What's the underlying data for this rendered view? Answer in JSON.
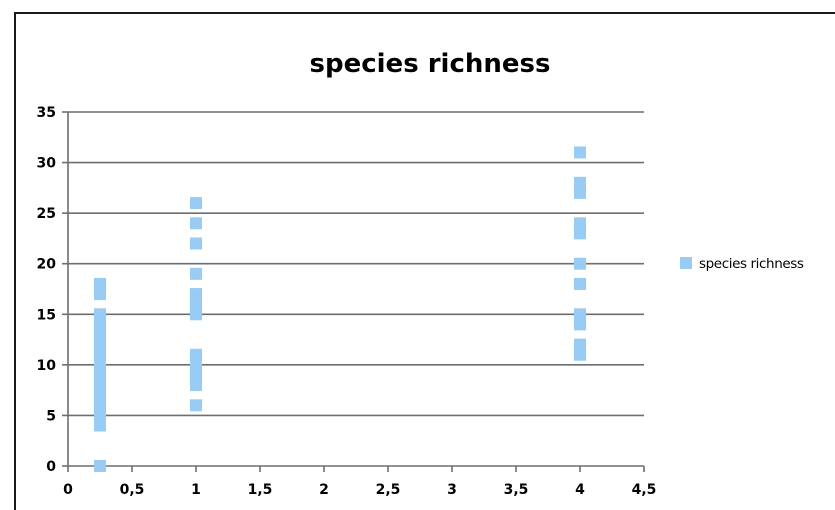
{
  "chart_data": {
    "type": "scatter",
    "title": "species richness",
    "xlabel": "",
    "ylabel": "",
    "xlim": [
      0,
      4.5
    ],
    "ylim": [
      0,
      35
    ],
    "x_tick_labels": [
      "0",
      "0,5",
      "1",
      "1,5",
      "2",
      "2,5",
      "3",
      "3,5",
      "4",
      "4,5"
    ],
    "y_tick_labels": [
      "0",
      "5",
      "10",
      "15",
      "20",
      "25",
      "30",
      "35"
    ],
    "grid": "horizontal",
    "legend_position": "right",
    "marker_color": "#99ccf5",
    "series": [
      {
        "name": "species richness",
        "points": [
          {
            "x": 0.25,
            "y": 0
          },
          {
            "x": 0.25,
            "y": 4
          },
          {
            "x": 0.25,
            "y": 5
          },
          {
            "x": 0.25,
            "y": 6
          },
          {
            "x": 0.25,
            "y": 7
          },
          {
            "x": 0.25,
            "y": 8
          },
          {
            "x": 0.25,
            "y": 9
          },
          {
            "x": 0.25,
            "y": 10
          },
          {
            "x": 0.25,
            "y": 11
          },
          {
            "x": 0.25,
            "y": 12
          },
          {
            "x": 0.25,
            "y": 13
          },
          {
            "x": 0.25,
            "y": 14
          },
          {
            "x": 0.25,
            "y": 15
          },
          {
            "x": 0.25,
            "y": 17
          },
          {
            "x": 0.25,
            "y": 18
          },
          {
            "x": 1,
            "y": 6
          },
          {
            "x": 1,
            "y": 8
          },
          {
            "x": 1,
            "y": 9
          },
          {
            "x": 1,
            "y": 10
          },
          {
            "x": 1,
            "y": 11
          },
          {
            "x": 1,
            "y": 15
          },
          {
            "x": 1,
            "y": 16
          },
          {
            "x": 1,
            "y": 17
          },
          {
            "x": 1,
            "y": 19
          },
          {
            "x": 1,
            "y": 22
          },
          {
            "x": 1,
            "y": 24
          },
          {
            "x": 1,
            "y": 26
          },
          {
            "x": 4,
            "y": 11
          },
          {
            "x": 4,
            "y": 12
          },
          {
            "x": 4,
            "y": 14
          },
          {
            "x": 4,
            "y": 15
          },
          {
            "x": 4,
            "y": 18
          },
          {
            "x": 4,
            "y": 20
          },
          {
            "x": 4,
            "y": 23
          },
          {
            "x": 4,
            "y": 24
          },
          {
            "x": 4,
            "y": 27
          },
          {
            "x": 4,
            "y": 28
          },
          {
            "x": 4,
            "y": 31
          }
        ]
      }
    ]
  }
}
